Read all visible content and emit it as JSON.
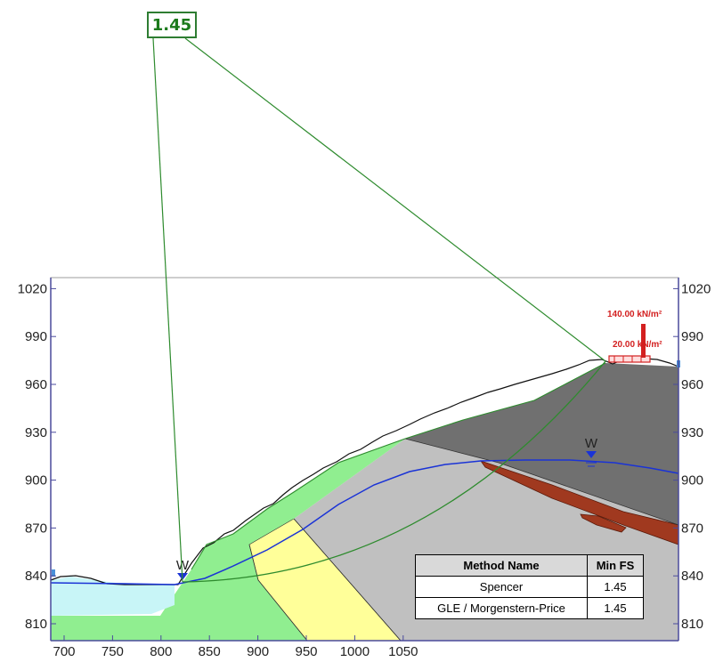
{
  "critical_fs_label": "1.45",
  "x_axis": {
    "ticks": [
      "700",
      "750",
      "800",
      "850",
      "900",
      "950",
      "1000",
      "1050"
    ]
  },
  "y_axis": {
    "ticks": [
      "810",
      "840",
      "870",
      "900",
      "930",
      "960",
      "990",
      "1020"
    ]
  },
  "loads": {
    "upper": "140.00 kN/m²",
    "lower": "20.00 kN/m²"
  },
  "water_symbol": "W",
  "results_table": {
    "headers": {
      "method": "Method Name",
      "fs": "Min FS"
    },
    "rows": [
      {
        "method": "Spencer",
        "fs": "1.45"
      },
      {
        "method": "GLE / Morgenstern-Price",
        "fs": "1.45"
      }
    ]
  },
  "colors": {
    "green_layer": "#90ee90",
    "yellow_layer": "#ffff99",
    "light_grey_layer": "#c0c0c0",
    "dark_grey_layer": "#707070",
    "brown_seam": "#a0391f",
    "water_fill": "#c8f5f7",
    "water_table": "#1a33d6",
    "slip_surface": "#2e8b2e",
    "load": "#d32020"
  }
}
